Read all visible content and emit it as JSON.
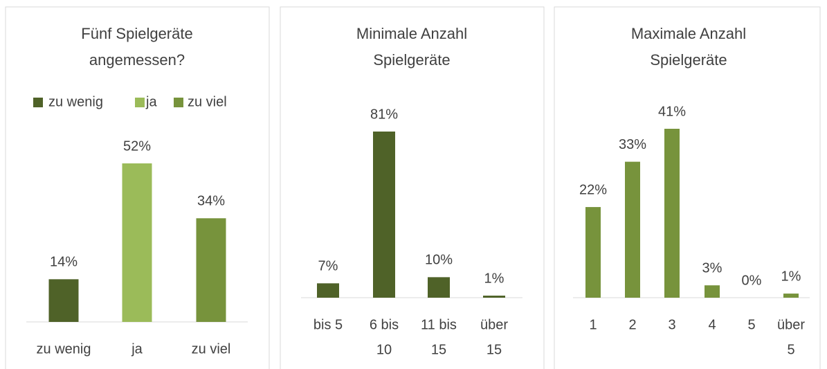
{
  "chart_data": [
    {
      "type": "bar",
      "title": [
        "Fünf Spielgeräte",
        "angemessen?"
      ],
      "categories": [
        [
          "zu wenig"
        ],
        [
          "ja"
        ],
        [
          "zu viel"
        ]
      ],
      "values": [
        14,
        52,
        34
      ],
      "value_labels": [
        "14%",
        "52%",
        "34%"
      ],
      "colors": [
        "#4f6228",
        "#9bbb59",
        "#77933c"
      ],
      "legend": "top"
    },
    {
      "type": "bar",
      "title": [
        "Minimale Anzahl",
        "Spielgeräte"
      ],
      "categories": [
        [
          "bis 5"
        ],
        [
          "6 bis",
          "10"
        ],
        [
          "11 bis",
          "15"
        ],
        [
          "über",
          "15"
        ]
      ],
      "values": [
        7,
        81,
        10,
        1
      ],
      "value_labels": [
        "7%",
        "81%",
        "10%",
        "1%"
      ],
      "color": "#4f6228"
    },
    {
      "type": "bar",
      "title": [
        "Maximale Anzahl",
        "Spielgeräte"
      ],
      "categories": [
        [
          "1"
        ],
        [
          "2"
        ],
        [
          "3"
        ],
        [
          "4"
        ],
        [
          "5"
        ],
        [
          "über",
          "5"
        ]
      ],
      "values": [
        22,
        33,
        41,
        3,
        0,
        1
      ],
      "value_labels": [
        "22%",
        "33%",
        "41%",
        "3%",
        "0%",
        "1%"
      ],
      "color": "#77933c"
    }
  ]
}
